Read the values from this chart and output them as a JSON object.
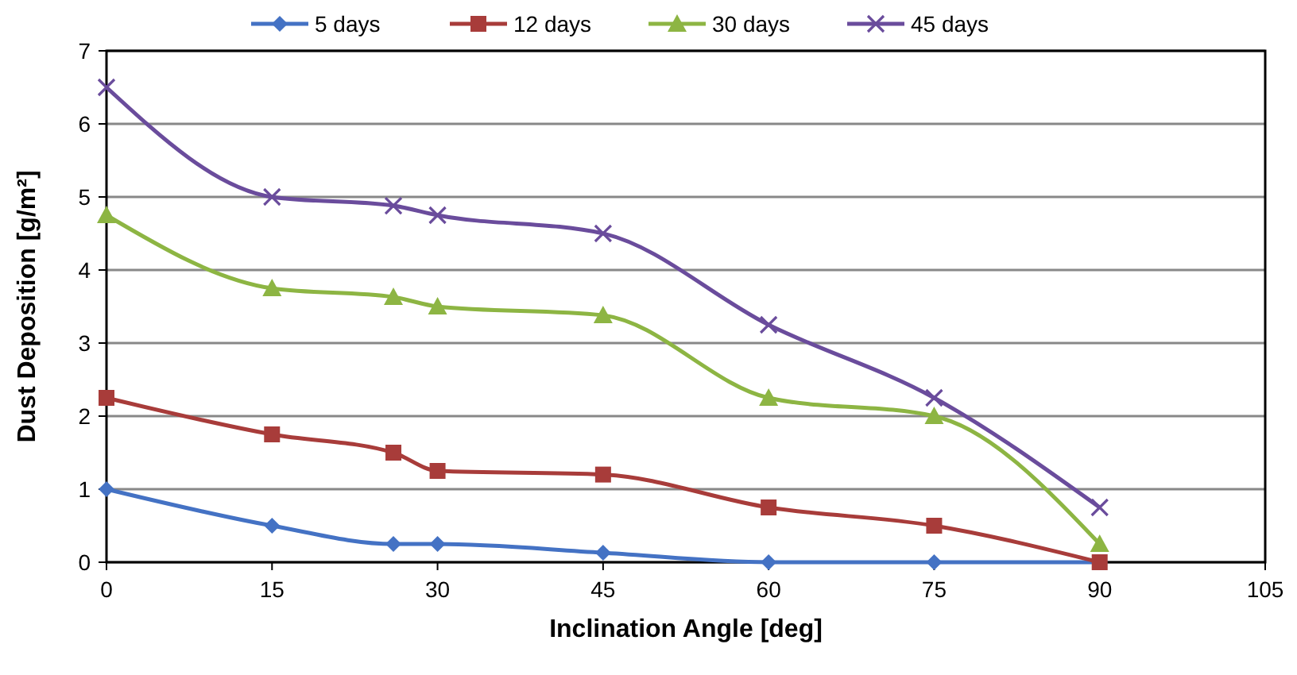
{
  "chart_data": {
    "type": "line",
    "xlabel": "Inclination Angle [deg]",
    "ylabel": "Dust Deposition [g/m²]",
    "x": [
      0,
      15,
      26,
      30,
      45,
      60,
      75,
      90
    ],
    "series": [
      {
        "name": "5 days",
        "color": "#4472c4",
        "marker": "diamond",
        "values": [
          1,
          0.5,
          0.25,
          0.25,
          0.13,
          0,
          0,
          0
        ]
      },
      {
        "name": "12 days",
        "color": "#a83c3a",
        "marker": "square",
        "values": [
          2.25,
          1.75,
          1.5,
          1.25,
          1.2,
          0.75,
          0.5,
          0
        ]
      },
      {
        "name": "30 days",
        "color": "#8db543",
        "marker": "triangle",
        "values": [
          4.75,
          3.75,
          3.63,
          3.5,
          3.38,
          2.25,
          2,
          0.25
        ]
      },
      {
        "name": "45 days",
        "color": "#6a4c9c",
        "marker": "cross",
        "values": [
          6.5,
          5,
          4.88,
          4.75,
          4.5,
          3.25,
          2.25,
          0.75
        ]
      }
    ],
    "xlim": [
      0,
      105
    ],
    "xticks": [
      0,
      15,
      30,
      45,
      60,
      75,
      90,
      105
    ],
    "ylim": [
      0,
      7
    ],
    "yticks": [
      0,
      1,
      2,
      3,
      4,
      5,
      6,
      7
    ],
    "grid": "y",
    "legend": "top"
  }
}
